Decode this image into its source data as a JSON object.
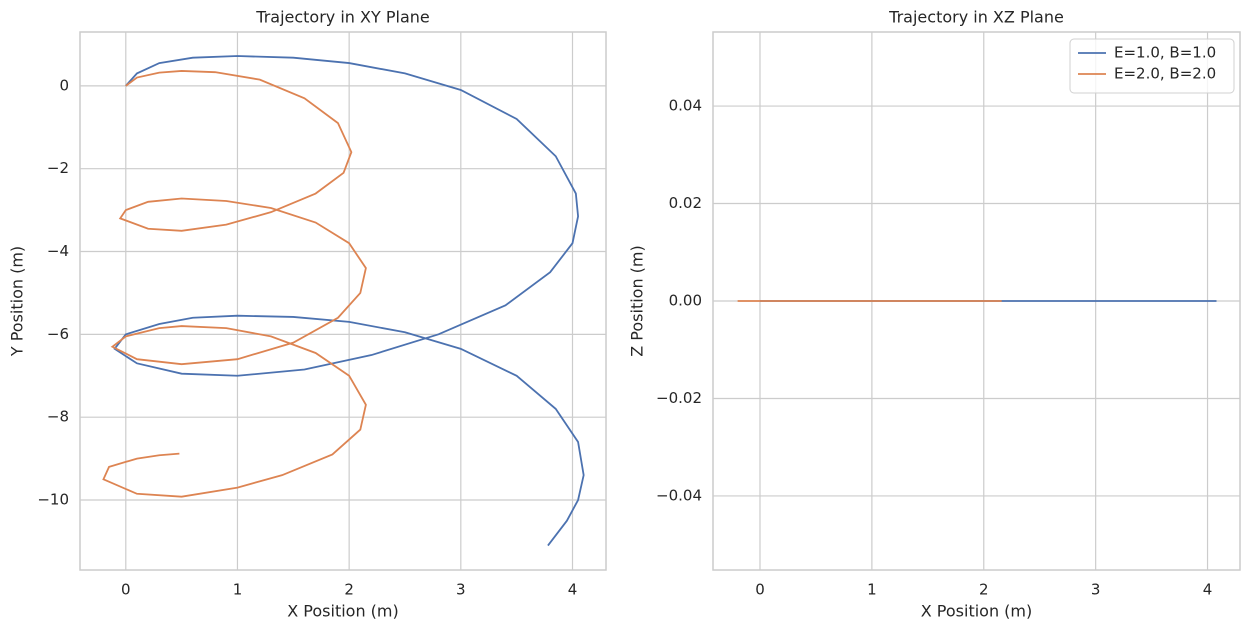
{
  "chart_data": [
    {
      "type": "line",
      "title": "Trajectory in XY Plane",
      "xlabel": "X Position (m)",
      "ylabel": "Y Position (m)",
      "xlim": [
        -0.41,
        4.3
      ],
      "ylim": [
        -11.69,
        1.3
      ],
      "xticks": [
        0,
        1,
        2,
        3,
        4
      ],
      "yticks": [
        0,
        {
          "value": -2,
          "label": "−2"
        },
        {
          "value": -4,
          "label": "−4"
        },
        {
          "value": -6,
          "label": "−6"
        },
        {
          "value": -8,
          "label": "−8"
        },
        {
          "value": -10,
          "label": "−10"
        }
      ],
      "grid": true,
      "series": [
        {
          "color": "#4c72b0",
          "x": [
            0,
            0.1,
            0.3,
            0.6,
            1,
            1.5,
            2,
            2.5,
            3,
            3.5,
            3.85,
            4.03,
            4.05,
            4.0,
            3.8,
            3.4,
            2.8,
            2.2,
            1.6,
            1,
            0.5,
            0.1,
            -0.1,
            0,
            0.3,
            0.6,
            1,
            1.5,
            2,
            2.5,
            3,
            3.5,
            3.85,
            4.05,
            4.1,
            4.05,
            3.95,
            3.78
          ],
          "y": [
            0,
            0.3,
            0.55,
            0.68,
            0.72,
            0.68,
            0.55,
            0.3,
            -0.1,
            -0.8,
            -1.7,
            -2.6,
            -3.15,
            -3.8,
            -4.5,
            -5.3,
            -6.0,
            -6.5,
            -6.85,
            -7.0,
            -6.95,
            -6.7,
            -6.35,
            -6.0,
            -5.75,
            -5.6,
            -5.55,
            -5.58,
            -5.7,
            -5.95,
            -6.35,
            -7.0,
            -7.8,
            -8.6,
            -9.4,
            -10.0,
            -10.5,
            -11.1
          ]
        },
        {
          "color": "#dd8452",
          "x": [
            0,
            0.1,
            0.3,
            0.5,
            0.8,
            1.2,
            1.6,
            1.9,
            2.02,
            1.95,
            1.7,
            1.3,
            0.9,
            0.5,
            0.2,
            -0.05,
            0,
            0.2,
            0.5,
            0.9,
            1.3,
            1.7,
            2.0,
            2.15,
            2.1,
            1.9,
            1.5,
            1.0,
            0.5,
            0.1,
            -0.12,
            0,
            0.3,
            0.5,
            0.9,
            1.3,
            1.7,
            2.0,
            2.15,
            2.1,
            1.85,
            1.4,
            1.0,
            0.5,
            0.1,
            -0.2,
            -0.15,
            0.1,
            0.3,
            0.48
          ],
          "y": [
            0,
            0.2,
            0.32,
            0.36,
            0.33,
            0.15,
            -0.3,
            -0.9,
            -1.6,
            -2.1,
            -2.6,
            -3.05,
            -3.35,
            -3.5,
            -3.45,
            -3.2,
            -3.0,
            -2.8,
            -2.72,
            -2.78,
            -2.95,
            -3.3,
            -3.8,
            -4.4,
            -5.0,
            -5.6,
            -6.2,
            -6.6,
            -6.72,
            -6.6,
            -6.3,
            -6.05,
            -5.85,
            -5.8,
            -5.85,
            -6.05,
            -6.45,
            -7.0,
            -7.7,
            -8.3,
            -8.9,
            -9.4,
            -9.7,
            -9.92,
            -9.85,
            -9.5,
            -9.2,
            -9.0,
            -8.92,
            -8.88
          ]
        }
      ]
    },
    {
      "type": "line",
      "title": "Trajectory in XZ Plane",
      "xlabel": "X Position (m)",
      "ylabel": "Z Position (m)",
      "xlim": [
        -0.42,
        4.29
      ],
      "ylim": [
        -0.0552,
        0.0552
      ],
      "xticks": [
        0,
        1,
        2,
        3,
        4
      ],
      "yticks": [
        0.04,
        0.02,
        {
          "value": 0,
          "label": "0.00"
        },
        {
          "value": -0.02,
          "label": "−0.02"
        },
        {
          "value": -0.04,
          "label": "−0.04"
        }
      ],
      "grid": true,
      "legend": "upper right",
      "series": [
        {
          "name": "E=1.0, B=1.0",
          "color": "#4c72b0",
          "x": [
            0,
            4.08
          ],
          "y": [
            0,
            0
          ]
        },
        {
          "name": "E=2.0, B=2.0",
          "color": "#dd8452",
          "x": [
            -0.2,
            2.16
          ],
          "y": [
            0,
            0
          ]
        }
      ]
    }
  ]
}
